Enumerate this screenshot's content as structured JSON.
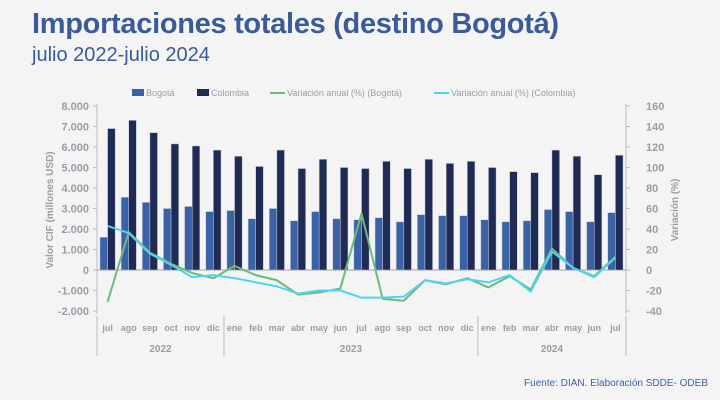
{
  "header": {
    "title": "Importaciones totales (destino Bogotá)",
    "subtitle": "julio 2022-julio 2024"
  },
  "footer": {
    "source": "Fuente: DIAN. Elaboración SDDE- ODEB"
  },
  "chart_data": {
    "type": "bar",
    "title": "Importaciones totales (destino Bogotá)",
    "subtitle": "julio 2022-julio 2024",
    "ylabel": "Valor CIF (millones USD)",
    "y2label": "Variación (%)",
    "ylim": [
      -2000,
      8000
    ],
    "y_ticks": [
      -2000,
      -1000,
      0,
      1000,
      2000,
      3000,
      4000,
      5000,
      6000,
      7000,
      8000
    ],
    "y_tick_labels": [
      "-2.000",
      "-1.000",
      "0",
      "1.000",
      "2.000",
      "3.000",
      "4.000",
      "5.000",
      "6.000",
      "7.000",
      "8.000"
    ],
    "y2lim": [
      -40,
      160
    ],
    "y2_ticks": [
      -40,
      -20,
      0,
      20,
      40,
      60,
      80,
      100,
      120,
      140,
      160
    ],
    "legend_position": "top",
    "categories": [
      "jul",
      "ago",
      "sep",
      "oct",
      "nov",
      "dic",
      "ene",
      "feb",
      "mar",
      "abr",
      "may",
      "jun",
      "jul",
      "ago",
      "sep",
      "oct",
      "nov",
      "dic",
      "ene",
      "feb",
      "mar",
      "abr",
      "may",
      "jun",
      "jul"
    ],
    "years": [
      {
        "label": "2022",
        "start": 0,
        "count": 6
      },
      {
        "label": "2023",
        "start": 6,
        "count": 12
      },
      {
        "label": "2024",
        "start": 18,
        "count": 7
      }
    ],
    "series": [
      {
        "name": "Bogotá",
        "kind": "bar",
        "axis": "left",
        "color": "#3a62a7",
        "values": [
          1600,
          3550,
          3300,
          3000,
          3100,
          2850,
          2900,
          2500,
          3000,
          2400,
          2850,
          2500,
          2450,
          2550,
          2350,
          2700,
          2650,
          2650,
          2450,
          2350,
          2400,
          2950,
          2850,
          2350,
          2800
        ]
      },
      {
        "name": "Colombia",
        "kind": "bar",
        "axis": "left",
        "color": "#1f2a55",
        "values": [
          6900,
          7300,
          6700,
          6150,
          6050,
          5850,
          5550,
          5050,
          5850,
          4950,
          5400,
          5000,
          4950,
          5300,
          4950,
          5400,
          5200,
          5300,
          5000,
          4800,
          4750,
          5850,
          5550,
          4650,
          5600
        ]
      },
      {
        "name": "Variación anual (%) (Bogotá)",
        "kind": "line",
        "axis": "right",
        "color": "#6dbb7a",
        "values": [
          -31,
          37,
          17,
          6,
          -3,
          -8,
          4,
          -5,
          -10,
          -24,
          -22,
          -18,
          55,
          -28,
          -30,
          -10,
          -14,
          -8,
          -17,
          -6,
          -19,
          21,
          2,
          -6,
          13
        ]
      },
      {
        "name": "Variación anual (%) (Colombia)",
        "kind": "line",
        "axis": "right",
        "color": "#4fd3f5",
        "values": [
          43,
          36,
          16,
          5,
          -7,
          -5,
          -8,
          -12,
          -16,
          -23,
          -20,
          -20,
          -27,
          -27,
          -26,
          -10,
          -13,
          -9,
          -12,
          -5,
          -21,
          18,
          2,
          -7,
          12
        ]
      }
    ]
  }
}
